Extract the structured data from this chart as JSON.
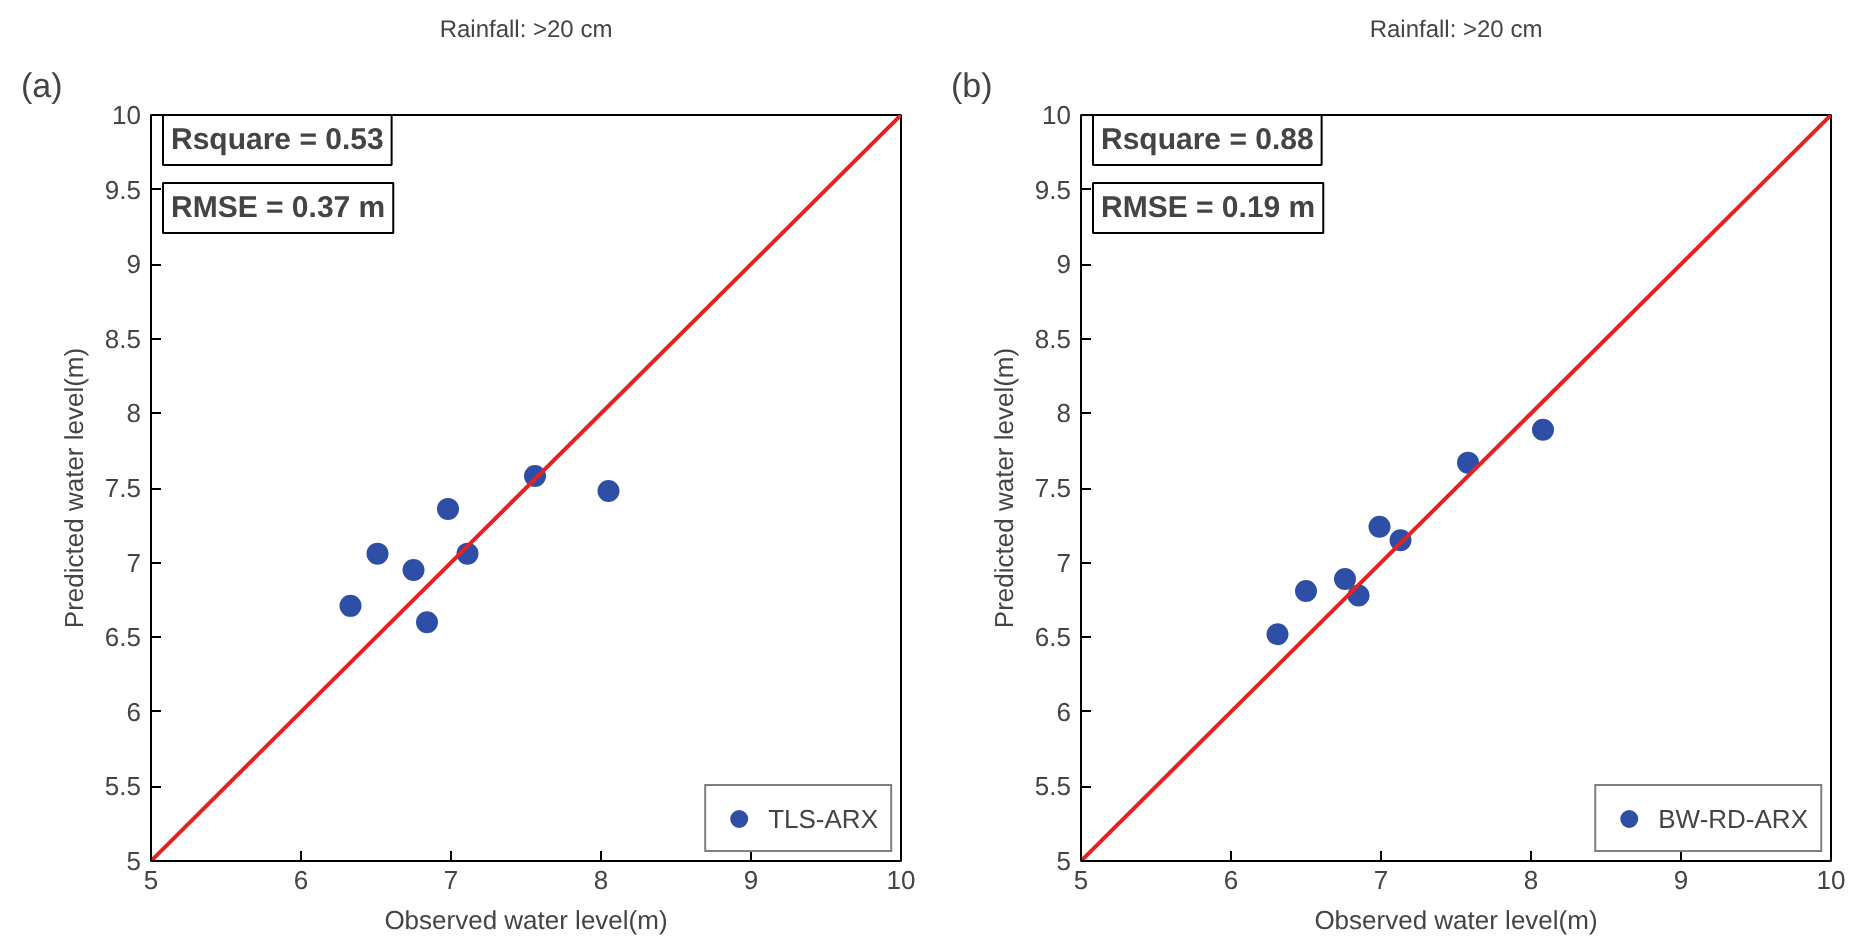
{
  "chart_data": [
    {
      "type": "scatter",
      "title": "Rainfall: >20 cm",
      "xlabel": "Observed water level(m)",
      "ylabel": "Predicted water level(m)",
      "annotations": [
        "(a)",
        "Rsquare = 0.53",
        "RMSE = 0.37 m"
      ],
      "xlim": [
        5,
        10
      ],
      "ylim": [
        5,
        10
      ],
      "xticks": [
        5,
        6,
        7,
        8,
        9,
        10
      ],
      "yticks": [
        5,
        5.5,
        6,
        6.5,
        7,
        7.5,
        8,
        8.5,
        9,
        9.5,
        10
      ],
      "grid": false,
      "legend": "bottom right",
      "series": [
        {
          "name": "TLS-ARX",
          "marker": "circle",
          "color": "#2e4fa5",
          "x": [
            6.33,
            6.51,
            6.75,
            6.84,
            6.98,
            7.11,
            7.56,
            8.05
          ],
          "values": [
            6.71,
            7.06,
            6.95,
            6.6,
            7.36,
            7.06,
            7.58,
            7.48
          ]
        },
        {
          "type": "line",
          "color": "#e8201f",
          "x": [
            5,
            10
          ],
          "values": [
            5,
            10
          ]
        }
      ]
    },
    {
      "type": "scatter",
      "title": "Rainfall: >20 cm",
      "xlabel": "Observed water level(m)",
      "ylabel": "Predicted water level(m)",
      "annotations": [
        "(b)",
        "Rsquare = 0.88",
        "RMSE = 0.19 m"
      ],
      "xlim": [
        5,
        10
      ],
      "ylim": [
        5,
        10
      ],
      "xticks": [
        5,
        6,
        7,
        8,
        9,
        10
      ],
      "yticks": [
        5,
        5.5,
        6,
        6.5,
        7,
        7.5,
        8,
        8.5,
        9,
        9.5,
        10
      ],
      "grid": false,
      "legend": "bottom right",
      "series": [
        {
          "name": "BW-RD-ARX",
          "marker": "circle",
          "color": "#2e4fa5",
          "x": [
            6.31,
            6.5,
            6.76,
            6.85,
            6.99,
            7.13,
            7.58,
            8.08
          ],
          "values": [
            6.52,
            6.81,
            6.89,
            6.78,
            7.24,
            7.15,
            7.67,
            7.89
          ]
        },
        {
          "type": "line",
          "color": "#e8201f",
          "x": [
            5,
            10
          ],
          "values": [
            5,
            10
          ]
        }
      ]
    }
  ]
}
